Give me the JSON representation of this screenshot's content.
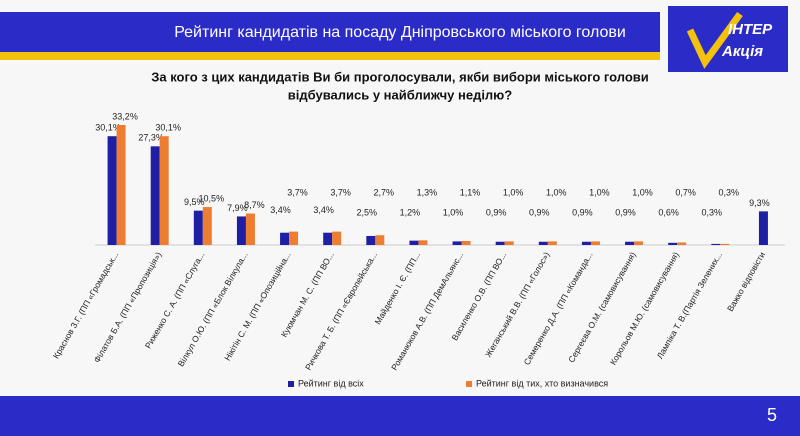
{
  "header": {
    "title": "Рейтинг кандидатів на посаду Дніпровського міського голови",
    "logo": [
      "ІНТЕР",
      "Акція"
    ]
  },
  "footer": {
    "page": "5"
  },
  "chart_data": {
    "type": "bar",
    "title": [
      "За кого з цих кандидатів Ви би проголосували, якби вибори міського голови",
      "відбувались у найближчу неділю?"
    ],
    "categories": [
      "Краснов З.Г. (ПП «Громадськ...",
      "Філатов Б.А. (ПП «Пропозиція»)",
      "Риженко С. А. (ПП «Слуга...",
      "Вілкул О.Ю. (ПП «Блок Вілкула...",
      "Нікітін С. М. (ПП «Опозиційна...",
      "Куюмчан М. С. (ПП ВО...",
      "Ричкова Т. Б. (ПП «Європейська...",
      "Майденко І. Є. (ПП...",
      "Романюков А.В. (ПП ДемАльянс...",
      "Василенко О.В. (ПП ВО...",
      "Жеганський В.В. (ПП «Голос»)",
      "Семеренко Д.А. (ПП «Команда...",
      "Сергеєва О.М. (самовисування)",
      "Корольов М.Ю. (самовисування)",
      "Лампіка Т. В.(Партія Зелених...",
      "Важко відповісти"
    ],
    "series": [
      {
        "name": "Рейтинг від всіх",
        "color": "#1f1fa6",
        "values": [
          30.1,
          27.3,
          9.5,
          7.9,
          3.4,
          3.4,
          2.5,
          1.2,
          1.0,
          0.9,
          0.9,
          0.9,
          0.9,
          0.6,
          0.3,
          9.3
        ],
        "value_labels": [
          "30,1%",
          "27,3%",
          "9,5%",
          "7,9%",
          "3,4%",
          "3,4%",
          "2,5%",
          "1,2%",
          "1,0%",
          "0,9%",
          "0,9%",
          "0,9%",
          "0,9%",
          "0,6%",
          "0,3%",
          "9,3%"
        ]
      },
      {
        "name": "Рейтинг від тих, хто визначився",
        "color": "#ed7d31",
        "values": [
          33.2,
          30.1,
          10.5,
          8.7,
          3.7,
          3.7,
          2.7,
          1.3,
          1.1,
          1.0,
          1.0,
          1.0,
          1.0,
          0.7,
          0.3,
          null
        ],
        "value_labels": [
          "33,2%",
          "30,1%",
          "10,5%",
          "8,7%",
          "3,7%",
          "3,7%",
          "2,7%",
          "1,3%",
          "1,1%",
          "1,0%",
          "1,0%",
          "1,0%",
          "1,0%",
          "0,7%",
          "0,3%",
          null
        ]
      }
    ]
  }
}
